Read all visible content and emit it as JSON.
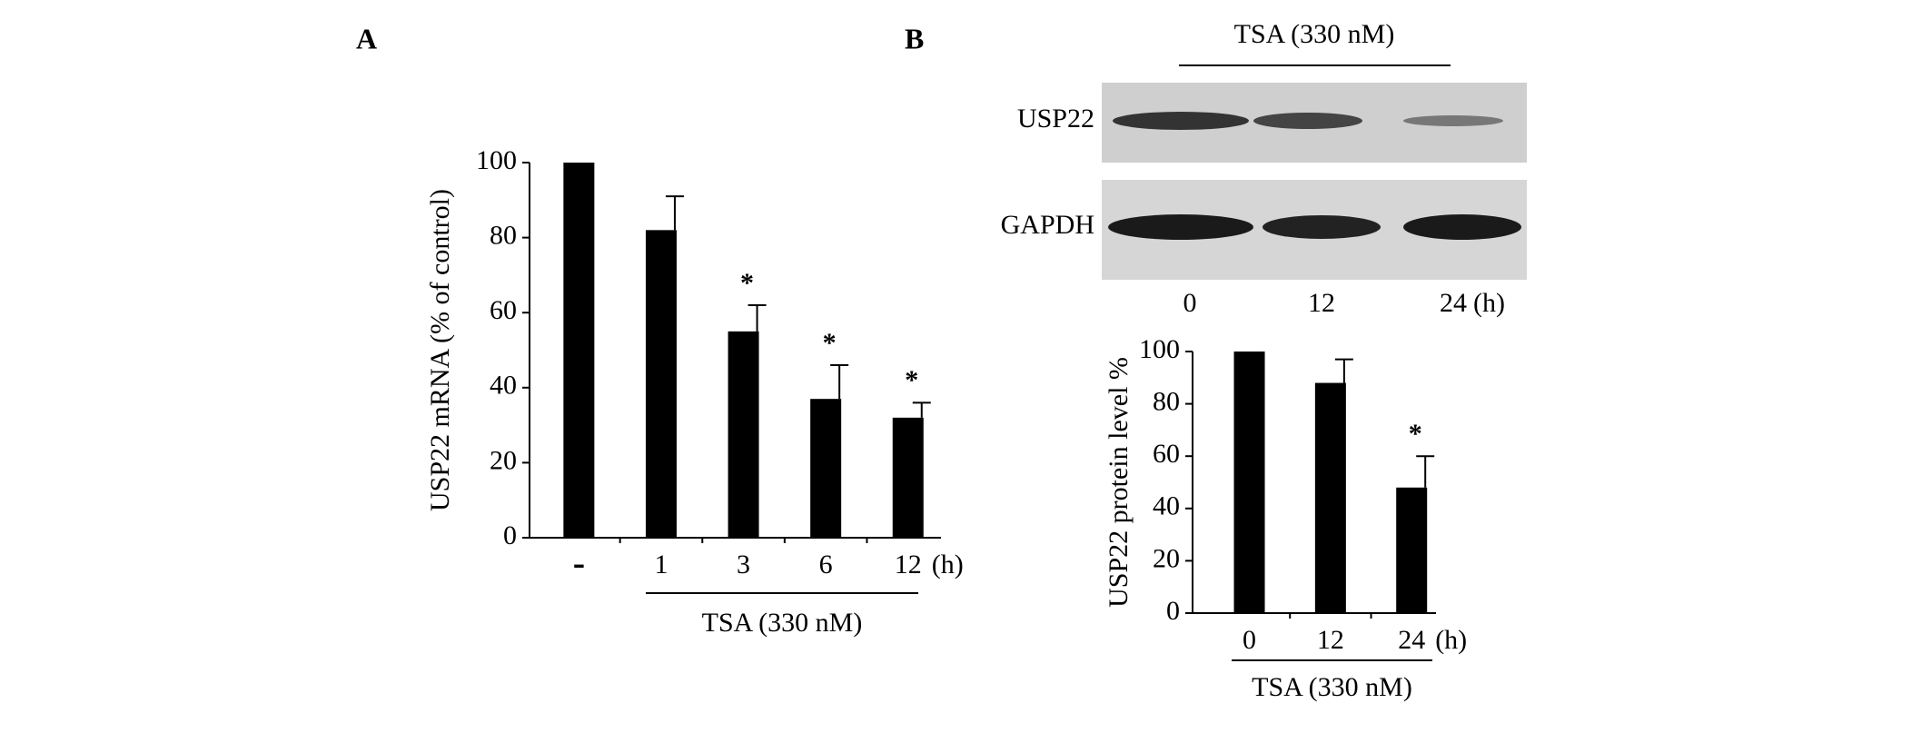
{
  "panels": [
    "A",
    "B"
  ],
  "blot": {
    "title": "TSA (330 nM)",
    "rows": [
      "USP22",
      "GAPDH"
    ],
    "lanes": [
      "0",
      "12",
      "24"
    ],
    "unit": "(h)"
  },
  "chart_data": [
    {
      "type": "bar",
      "y_label": "USP22 mRNA (% of control)",
      "categories": [
        "-",
        "1",
        "3",
        "6",
        "12"
      ],
      "unit": "(h)",
      "group_label": "TSA (330 nM)",
      "values": [
        100,
        82,
        55,
        37,
        32
      ],
      "errors": [
        null,
        9,
        7,
        9,
        4
      ],
      "significance": [
        null,
        null,
        "*",
        "*",
        "*"
      ],
      "color": "#000000",
      "ylim": [
        0,
        100
      ],
      "yticks": [
        0,
        20,
        40,
        60,
        80,
        100
      ]
    },
    {
      "type": "bar",
      "y_label": "USP22 protein level %",
      "categories": [
        "0",
        "12",
        "24"
      ],
      "unit": "(h)",
      "group_label": "TSA (330 nM)",
      "values": [
        100,
        88,
        48
      ],
      "errors": [
        null,
        9,
        12
      ],
      "significance": [
        null,
        null,
        "*"
      ],
      "color": "#000000",
      "ylim": [
        0,
        100
      ],
      "yticks": [
        0,
        20,
        40,
        60,
        80,
        100
      ]
    }
  ]
}
